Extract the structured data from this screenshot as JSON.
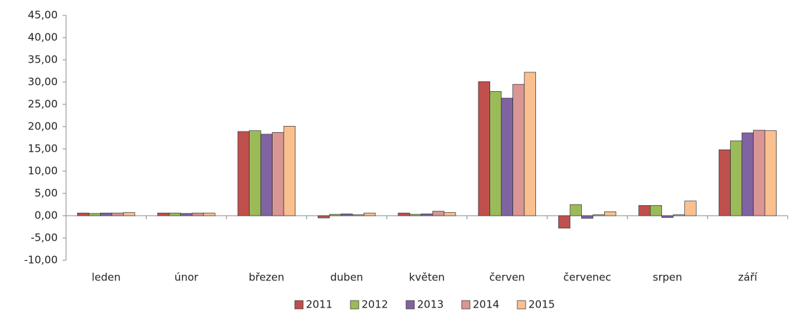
{
  "chart_data": {
    "type": "bar",
    "categories": [
      "leden",
      "únor",
      "březen",
      "duben",
      "květen",
      "červen",
      "červenec",
      "srpen",
      "září"
    ],
    "series": [
      {
        "name": "2011",
        "color": "#c0504d",
        "values": [
          0.6,
          0.6,
          18.9,
          -0.5,
          0.6,
          30.1,
          -2.8,
          2.3,
          14.8
        ]
      },
      {
        "name": "2012",
        "color": "#9bbb59",
        "values": [
          0.5,
          0.6,
          19.1,
          0.3,
          0.3,
          27.9,
          2.5,
          2.3,
          16.8
        ]
      },
      {
        "name": "2013",
        "color": "#8064a2",
        "values": [
          0.6,
          0.5,
          18.3,
          0.4,
          0.4,
          26.4,
          -0.6,
          -0.4,
          18.6
        ]
      },
      {
        "name": "2014",
        "color": "#d99694",
        "values": [
          0.6,
          0.6,
          18.7,
          0.2,
          1.0,
          29.5,
          0.2,
          0.2,
          19.2
        ]
      },
      {
        "name": "2015",
        "color": "#fac090",
        "values": [
          0.7,
          0.6,
          20.1,
          0.6,
          0.7,
          32.2,
          0.9,
          3.3,
          19.1
        ]
      }
    ],
    "ylim": [
      -10,
      45
    ],
    "yticks": [
      {
        "value": -10,
        "label": "-10,00"
      },
      {
        "value": -5,
        "label": "-5,00"
      },
      {
        "value": 0,
        "label": "0,00"
      },
      {
        "value": 5,
        "label": "5,00"
      },
      {
        "value": 10,
        "label": "10,00"
      },
      {
        "value": 15,
        "label": "15,00"
      },
      {
        "value": 20,
        "label": "20,00"
      },
      {
        "value": 25,
        "label": "25,00"
      },
      {
        "value": 30,
        "label": "30,00"
      },
      {
        "value": 35,
        "label": "35,00"
      },
      {
        "value": 40,
        "label": "40,00"
      },
      {
        "value": 45,
        "label": "45,00"
      }
    ],
    "grid": false,
    "legend": "bottom"
  }
}
